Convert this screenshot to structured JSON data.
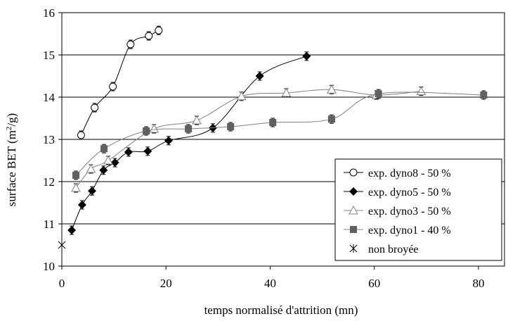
{
  "chart_data": {
    "type": "scatter",
    "xlabel": "temps normalisé d'attrition  (mn)",
    "ylabel_parts": [
      "surface BET (m",
      "2",
      "/g)"
    ],
    "xlim": [
      0,
      85
    ],
    "ylim": [
      10,
      16
    ],
    "x_ticks": [
      0,
      20,
      40,
      60,
      80
    ],
    "y_ticks": [
      10,
      11,
      12,
      13,
      14,
      15,
      16
    ],
    "grid": "horizontal",
    "legend_position": "bottom-right",
    "series": [
      {
        "name": "exp. dyno8 - 50 %",
        "marker": "circle-open",
        "color": "#000000",
        "points": [
          [
            3.7,
            13.1
          ],
          [
            6.3,
            13.75
          ],
          [
            9.8,
            14.25
          ],
          [
            13.2,
            15.25
          ],
          [
            16.7,
            15.45
          ],
          [
            18.6,
            15.58
          ]
        ],
        "err": 0.1
      },
      {
        "name": "exp. dyno5 - 50 %",
        "marker": "diamond",
        "color": "#000000",
        "points": [
          [
            1.9,
            10.85
          ],
          [
            3.9,
            11.45
          ],
          [
            5.8,
            11.78
          ],
          [
            8.0,
            12.27
          ],
          [
            10.2,
            12.45
          ],
          [
            12.8,
            12.7
          ],
          [
            16.5,
            12.72
          ],
          [
            20.5,
            12.97
          ],
          [
            29.0,
            13.27
          ],
          [
            38.0,
            14.5
          ],
          [
            47.0,
            14.97
          ]
        ],
        "err": 0.1
      },
      {
        "name": "exp. dyno3 - 50 %",
        "marker": "triangle-open",
        "color": "#808080",
        "points": [
          [
            2.7,
            11.85
          ],
          [
            5.6,
            12.3
          ],
          [
            8.9,
            12.5
          ],
          [
            17.7,
            13.25
          ],
          [
            25.9,
            13.45
          ],
          [
            34.5,
            14.02
          ],
          [
            43.1,
            14.1
          ],
          [
            51.8,
            14.18
          ],
          [
            60.4,
            14.05
          ],
          [
            69.0,
            14.14
          ]
        ],
        "err": 0.1
      },
      {
        "name": "exp. dyno1 - 40 %",
        "marker": "square",
        "color": "#606060",
        "points": [
          [
            2.7,
            12.15
          ],
          [
            8.1,
            12.78
          ],
          [
            16.2,
            13.2
          ],
          [
            24.3,
            13.25
          ],
          [
            32.4,
            13.3
          ],
          [
            40.5,
            13.4
          ],
          [
            51.8,
            13.48
          ],
          [
            60.8,
            14.08
          ],
          [
            81.0,
            14.05
          ]
        ],
        "err": 0.1
      },
      {
        "name": "non broyée",
        "marker": "star",
        "color": "#000000",
        "points": [
          [
            0,
            10.5
          ]
        ],
        "err": 0
      }
    ]
  }
}
